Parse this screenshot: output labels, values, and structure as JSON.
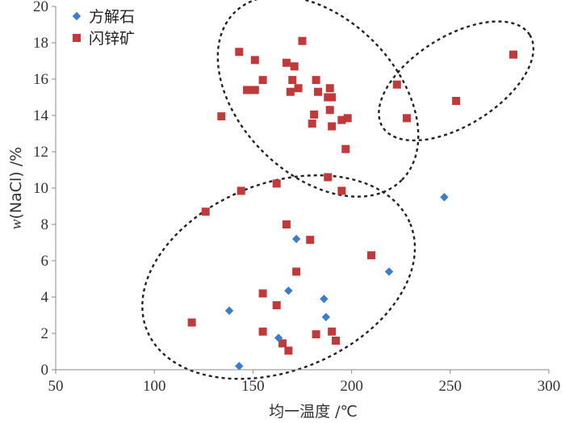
{
  "chart_data": {
    "type": "scatter",
    "xlabel": "均一温度 /℃",
    "ylabel_prefix": "w",
    "ylabel_suffix": "(NaCl) /%",
    "xlim": [
      50,
      300
    ],
    "ylim": [
      0,
      20
    ],
    "x_ticks": [
      50,
      100,
      150,
      200,
      250,
      300
    ],
    "y_ticks": [
      0,
      2,
      4,
      6,
      8,
      10,
      12,
      14,
      16,
      18,
      20
    ],
    "x_tick_labels": [
      "50",
      "100",
      "150",
      "200",
      "250",
      "300"
    ],
    "y_tick_labels": [
      "0",
      "2",
      "4",
      "6",
      "8",
      "10",
      "12",
      "14",
      "16",
      "18",
      "20"
    ],
    "legend_position": "top-left",
    "series": [
      {
        "name": "方解石",
        "marker": "diamond",
        "color": "#3d7cc9",
        "points": [
          [
            138,
            3.25
          ],
          [
            143,
            0.2
          ],
          [
            163,
            1.75
          ],
          [
            168,
            4.35
          ],
          [
            172,
            7.2
          ],
          [
            186,
            3.9
          ],
          [
            187,
            2.9
          ],
          [
            219,
            5.4
          ],
          [
            247,
            9.5
          ]
        ]
      },
      {
        "name": "闪锌矿",
        "marker": "square",
        "color": "#c0393b",
        "points": [
          [
            143,
            17.5
          ],
          [
            151,
            17.05
          ],
          [
            155,
            15.95
          ],
          [
            167,
            16.9
          ],
          [
            171,
            16.7
          ],
          [
            175,
            18.1
          ],
          [
            147,
            15.4
          ],
          [
            151,
            15.4
          ],
          [
            169,
            15.3
          ],
          [
            170,
            15.95
          ],
          [
            173,
            15.5
          ],
          [
            182,
            15.95
          ],
          [
            183,
            15.3
          ],
          [
            188,
            15.0
          ],
          [
            189,
            15.5
          ],
          [
            190,
            15.0
          ],
          [
            134,
            13.95
          ],
          [
            180,
            13.55
          ],
          [
            181,
            14.05
          ],
          [
            189,
            14.3
          ],
          [
            190,
            13.4
          ],
          [
            195,
            13.75
          ],
          [
            198,
            13.85
          ],
          [
            197,
            12.15
          ],
          [
            188,
            10.6
          ],
          [
            195,
            9.85
          ],
          [
            162,
            10.25
          ],
          [
            144,
            9.85
          ],
          [
            126,
            8.7
          ],
          [
            167,
            8.0
          ],
          [
            179,
            7.15
          ],
          [
            172,
            5.4
          ],
          [
            210,
            6.3
          ],
          [
            155,
            4.2
          ],
          [
            162,
            3.55
          ],
          [
            119,
            2.6
          ],
          [
            155,
            2.1
          ],
          [
            165,
            1.45
          ],
          [
            168,
            1.05
          ],
          [
            182,
            1.95
          ],
          [
            190,
            2.1
          ],
          [
            192,
            1.6
          ],
          [
            223,
            15.7
          ],
          [
            228,
            13.85
          ],
          [
            253,
            14.8
          ],
          [
            282,
            17.35
          ]
        ]
      }
    ],
    "annotations": [
      {
        "type": "dashed-ellipse",
        "cx": 183,
        "cy": 15.05,
        "rx_deg": 60,
        "ry_deg": 4.3,
        "rotation": 45
      },
      {
        "type": "dashed-ellipse",
        "cx": 163,
        "cy": 5.1,
        "rx_deg": 72,
        "ry_deg": 5.15,
        "rotation": -22
      },
      {
        "type": "dashed-ellipse",
        "cx": 253,
        "cy": 15.9,
        "rx_deg": 44,
        "ry_deg": 2.45,
        "rotation": -32
      }
    ]
  }
}
